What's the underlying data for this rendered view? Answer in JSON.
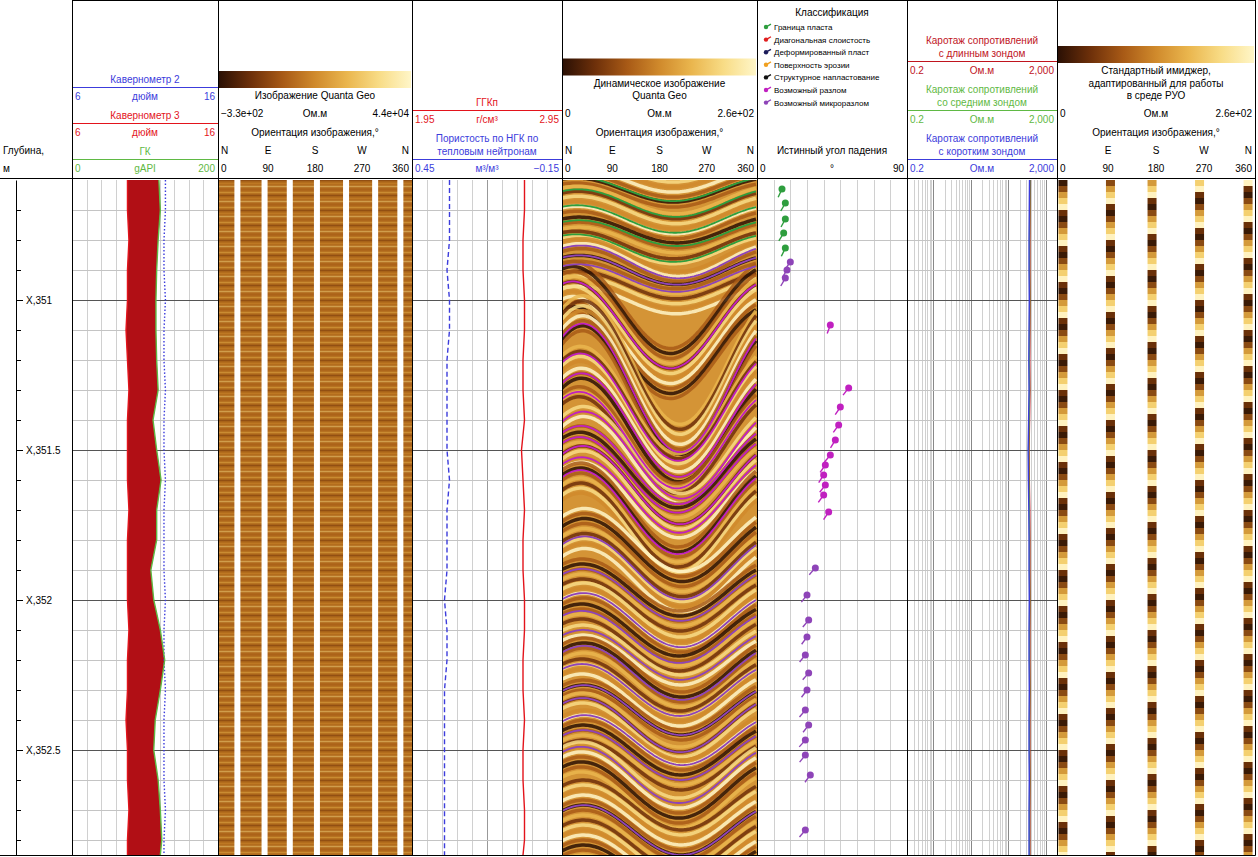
{
  "chart_data": {
    "type": "well_log",
    "ylabel": "Глубина, м",
    "ylim": [
      350.6,
      352.85
    ],
    "yticks": [
      {
        "value": 351,
        "label": "X,351"
      },
      {
        "value": 351.5,
        "label": "X,351.5"
      },
      {
        "value": 352,
        "label": "X,352"
      },
      {
        "value": 352.5,
        "label": "X,352.5"
      }
    ],
    "yticks_minor": [
      350.7,
      350.8,
      350.9,
      351.1,
      351.2,
      351.3,
      351.4,
      351.6,
      351.7,
      351.8,
      351.9,
      352.1,
      352.2,
      352.3,
      352.4,
      352.6,
      352.7,
      352.8
    ],
    "grid": true,
    "depth": [
      350.6,
      350.7,
      350.8,
      350.9,
      351.0,
      351.1,
      351.2,
      351.3,
      351.4,
      351.5,
      351.6,
      351.7,
      351.8,
      351.9,
      352.0,
      352.1,
      352.2,
      352.3,
      352.4,
      352.5,
      352.6,
      352.7,
      352.8,
      352.85
    ],
    "tracks": [
      {
        "type": "curves",
        "series": [
          {
            "name": "Кавернометр 2",
            "color": "#3c3cdc",
            "line_style": "dotted",
            "unit": "дюйм",
            "xlim": [
              6,
              16
            ],
            "xticks": [
              6,
              16
            ],
            "values": [
              12.4,
              12.4,
              12.3,
              12.3,
              12.4,
              12.3,
              12.3,
              12.4,
              12.3,
              12.3,
              12.4,
              12.3,
              12.3,
              12.3,
              12.4,
              12.3,
              12.3,
              12.4,
              12.3,
              12.3,
              12.3,
              12.4,
              12.3,
              12.3
            ]
          },
          {
            "name": "Кавернометр 3",
            "color": "#e3131b",
            "line_style": "solid",
            "unit": "дюйм",
            "xlim": [
              6,
              16
            ],
            "xticks": [
              6,
              16
            ],
            "values": [
              9.8,
              9.8,
              9.9,
              9.8,
              9.8,
              9.7,
              9.8,
              9.9,
              9.8,
              9.8,
              9.8,
              9.9,
              9.8,
              9.8,
              9.8,
              9.9,
              9.8,
              9.8,
              9.7,
              9.8,
              9.8,
              9.9,
              9.8,
              9.8
            ]
          },
          {
            "name": "ГК",
            "color": "#5fb944",
            "line_style": "solid",
            "unit": "gAPI",
            "xlim": [
              0,
              200
            ],
            "xticks": [
              0,
              200
            ],
            "values": [
              119,
              121,
              118,
              116,
              115,
              115,
              116,
              118,
              111,
              116,
              122,
              116,
              116,
              108,
              112,
              121,
              127,
              121,
              114,
              112,
              118,
              121,
              123,
              121
            ]
          }
        ]
      },
      {
        "type": "image",
        "title": "Изображение Quanta Geo",
        "unit": "Ом.м",
        "colorbar_ticks": [
          {
            "value": -330,
            "label": "−3.3e+02"
          },
          {
            "value": 44000,
            "label": "4.4e+04"
          }
        ],
        "orientation_label": "Ориентация изображения,°",
        "orientation_ticks": [
          0,
          90,
          180,
          270,
          360
        ],
        "compass": [
          "N",
          "E",
          "S",
          "W",
          "N"
        ]
      },
      {
        "type": "curves",
        "series": [
          {
            "name": "ГГКп",
            "color": "#e3131b",
            "line_style": "solid",
            "unit": "г/см³",
            "xlim": [
              1.95,
              2.95
            ],
            "xticks": [
              1.95,
              2.95
            ],
            "values": [
              2.7,
              2.7,
              2.69,
              2.69,
              2.7,
              2.7,
              2.69,
              2.69,
              2.7,
              2.68,
              2.69,
              2.7,
              2.69,
              2.69,
              2.7,
              2.7,
              2.69,
              2.69,
              2.7,
              2.69,
              2.69,
              2.7,
              2.7,
              2.69
            ]
          },
          {
            "name": "Пористость по НГК по тепловым нейтронам",
            "color": "#3c3cdc",
            "line_style": "dashed",
            "unit": "м³/м³",
            "xlim": [
              0.45,
              -0.15
            ],
            "xticks": [
              0.45,
              {
                "value": -0.15,
                "label": "−0.15"
              }
            ],
            "values": [
              0.3,
              0.3,
              0.3,
              0.31,
              0.3,
              0.3,
              0.31,
              0.31,
              0.31,
              0.31,
              0.3,
              0.31,
              0.31,
              0.31,
              0.32,
              0.31,
              0.31,
              0.32,
              0.32,
              0.32,
              0.32,
              0.32,
              0.32,
              0.32
            ]
          }
        ]
      },
      {
        "type": "image",
        "title": "Динамическое изображение Quanta Geo",
        "unit": "Ом.м",
        "colorbar_ticks": [
          0,
          {
            "value": 260,
            "label": "2.6e+02"
          }
        ],
        "orientation_label": "Ориентация изображения,°",
        "orientation_ticks": [
          0,
          90,
          180,
          270,
          360
        ],
        "compass": [
          "N",
          "E",
          "S",
          "W",
          "N"
        ]
      },
      {
        "type": "dips",
        "title": "Классификация",
        "classes": [
          {
            "name": "Граница пласта",
            "color": "#2e9e3e"
          },
          {
            "name": "Диагональная слоистость",
            "color": "#e01e1e"
          },
          {
            "name": "Деформированный пласт",
            "color": "#1c1c5a"
          },
          {
            "name": "Поверхность эрозии",
            "color": "#f0a020"
          },
          {
            "name": "Структурное напластование",
            "color": "#111111"
          },
          {
            "name": "Возможный разлом",
            "color": "#c020c0"
          },
          {
            "name": "Возможный микроразлом",
            "color": "#8e44b8"
          }
        ],
        "xlabel": "Истинный угол падения",
        "unit": "°",
        "xlim": [
          0,
          90
        ],
        "xticks": [
          0,
          90
        ],
        "depth": [
          350.63,
          350.677,
          350.73,
          350.777,
          350.827,
          350.873,
          350.9,
          350.927,
          351.083,
          351.293,
          351.357,
          351.417,
          351.467,
          351.517,
          351.55,
          351.583,
          351.617,
          351.65,
          351.707,
          351.893,
          351.983,
          352.067,
          352.123,
          352.183,
          352.243,
          352.3,
          352.367,
          352.417,
          352.467,
          352.517,
          352.583,
          352.767
        ],
        "values": [
          15,
          17,
          17,
          16,
          17,
          20,
          18,
          17,
          44,
          55,
          50,
          49,
          47,
          44,
          41,
          40,
          41,
          40,
          43,
          35,
          30,
          31,
          30,
          29,
          31,
          30,
          29,
          31,
          29,
          29,
          32,
          29
        ],
        "azimuth": [
          205,
          210,
          208,
          212,
          206,
          215,
          212,
          210,
          200,
          218,
          214,
          216,
          212,
          220,
          215,
          213,
          218,
          216,
          214,
          222,
          218,
          220,
          216,
          219,
          221,
          217,
          220,
          218,
          222,
          219,
          216,
          220
        ],
        "class": [
          0,
          0,
          0,
          0,
          0,
          6,
          6,
          6,
          5,
          5,
          5,
          5,
          5,
          5,
          5,
          5,
          5,
          5,
          5,
          6,
          6,
          6,
          6,
          6,
          6,
          6,
          6,
          6,
          6,
          6,
          6,
          6
        ]
      },
      {
        "type": "curves",
        "log": "x",
        "series": [
          {
            "name": "Каротаж сопротивлений с длинным зондом",
            "color": "#c0141e",
            "line_style": "solid",
            "unit": "Ом.м",
            "xlim": [
              0.2,
              2000
            ],
            "xticks": [
              0.2,
              {
                "value": 2000,
                "label": "2,000"
              }
            ],
            "values": [
              390,
              385,
              380,
              380,
              385,
              380,
              375,
              380,
              370,
              360,
              365,
              375,
              380,
              380,
              385,
              380,
              380,
              385,
              380,
              380,
              385,
              380,
              380,
              380
            ]
          },
          {
            "name": "Каротаж сопротивлений со средним зондом",
            "color": "#5fb944",
            "line_style": "solid",
            "unit": "Ом.м",
            "xlim": [
              0.2,
              2000
            ],
            "xticks": [
              0.2,
              {
                "value": 2000,
                "label": "2,000"
              }
            ],
            "values": [
              380,
              375,
              370,
              370,
              375,
              370,
              365,
              370,
              360,
              350,
              355,
              365,
              370,
              370,
              375,
              370,
              370,
              375,
              370,
              370,
              375,
              370,
              370,
              370
            ]
          },
          {
            "name": "Каротаж сопротивлений с коротким зондом",
            "color": "#3c3cdc",
            "line_style": "solid",
            "unit": "Ом.м",
            "xlim": [
              0.2,
              2000
            ],
            "xticks": [
              0.2,
              {
                "value": 2000,
                "label": "2,000"
              }
            ],
            "values": [
              370,
              365,
              360,
              360,
              365,
              360,
              355,
              360,
              350,
              340,
              345,
              355,
              360,
              360,
              365,
              360,
              360,
              365,
              360,
              360,
              365,
              360,
              360,
              360
            ]
          }
        ]
      },
      {
        "type": "image",
        "title": "Стандартный имиджер, адаптированный для работы в среде РУО",
        "unit": "Ом.м",
        "colorbar_ticks": [
          0,
          {
            "value": 260,
            "label": "2.6e+02"
          }
        ],
        "orientation_label": "Ориентация изображения,°",
        "orientation_ticks": [
          0,
          90,
          180,
          270,
          360
        ],
        "compass": [
          null,
          "E",
          "S",
          "W",
          "N"
        ]
      }
    ]
  }
}
